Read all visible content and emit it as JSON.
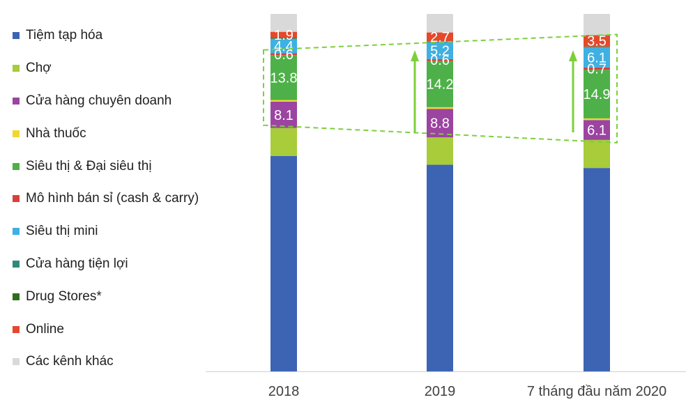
{
  "chart_data": {
    "type": "bar",
    "stacked": true,
    "categories": [
      "2018",
      "2019",
      "7 tháng đầu năm 2020"
    ],
    "series": [
      {
        "name": "Tiệm tạp hóa",
        "color": "#3d63b3",
        "values": [
          66.3,
          63.6,
          62.3
        ]
      },
      {
        "name": "Chợ",
        "color": "#a8cc3a",
        "values": [
          8.6,
          8.4,
          8.6
        ]
      },
      {
        "name": "Cửa hàng chuyên doanh",
        "color": "#9b44a0",
        "values": [
          8.1,
          8.8,
          6.1
        ]
      },
      {
        "name": "Nhà thuốc",
        "color": "#f0d830",
        "values": [
          0.5,
          0.5,
          0.5
        ]
      },
      {
        "name": "Siêu thị & Đại siêu thị",
        "color": "#4eb048",
        "values": [
          13.8,
          14.2,
          14.9
        ]
      },
      {
        "name": "Mô hình bán sỉ (cash & carry)",
        "color": "#d9403a",
        "values": [
          0.6,
          0.6,
          0.7
        ]
      },
      {
        "name": "Siêu thị mini",
        "color": "#3fb0e2",
        "values": [
          4.4,
          5.2,
          6.1
        ]
      },
      {
        "name": "Cửa hàng tiện lợi",
        "color": "#2f8a7a",
        "values": [
          0.2,
          0.2,
          0.2
        ]
      },
      {
        "name": "Drug Stores*",
        "color": "#2e6e1e",
        "values": [
          0.1,
          0.1,
          0.1
        ]
      },
      {
        "name": "Online",
        "color": "#e5482b",
        "values": [
          1.9,
          2.7,
          3.5
        ]
      },
      {
        "name": "Các kênh khác",
        "color": "#d9d9d9",
        "values": [
          5.5,
          5.7,
          6.5
        ]
      }
    ],
    "data_labels": [
      {
        "series": 2,
        "values": [
          "8.1",
          "8.8",
          "6.1"
        ]
      },
      {
        "series": 4,
        "values": [
          "13.8",
          "14.2",
          "14.9"
        ]
      },
      {
        "series": 5,
        "values": [
          "0.6",
          "0.6",
          "0.7"
        ]
      },
      {
        "series": 6,
        "values": [
          "4.4",
          "5.2",
          "6.1"
        ]
      },
      {
        "series": 9,
        "values": [
          "1.9",
          "2.7",
          "3.5"
        ]
      }
    ],
    "legend_position": "left",
    "grid": false,
    "annotations": [
      "dashed green box around modern-channel segments",
      "upward green arrows between periods"
    ]
  }
}
